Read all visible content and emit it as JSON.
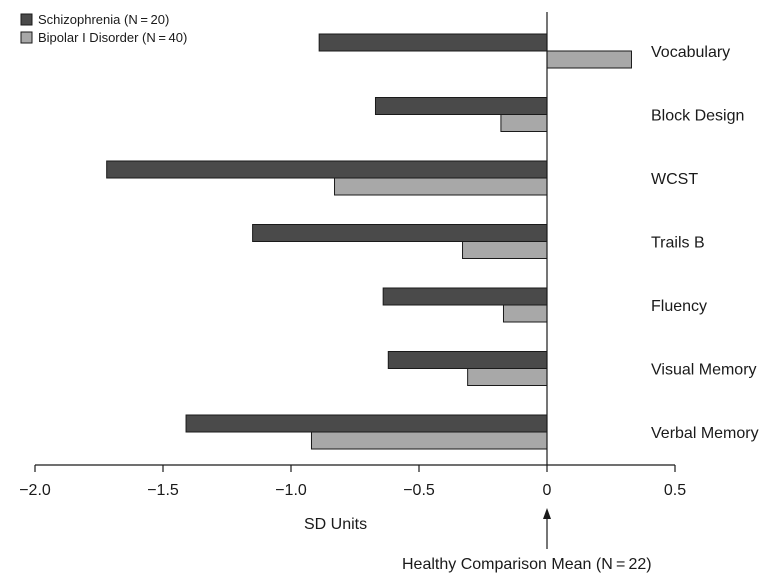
{
  "chart_data": {
    "type": "bar",
    "orientation": "horizontal",
    "categories": [
      "Vocabulary",
      "Block Design",
      "WCST",
      "Trails B",
      "Fluency",
      "Visual Memory",
      "Verbal Memory"
    ],
    "series": [
      {
        "name": "Schizophrenia (N = 20)",
        "color": "#4a4a4a",
        "values": [
          -0.89,
          -0.67,
          -1.72,
          -1.15,
          -0.64,
          -0.62,
          -1.41
        ]
      },
      {
        "name": "Bipolar I Disorder (N = 40)",
        "color": "#a8a8a8",
        "values": [
          0.33,
          -0.18,
          -0.83,
          -0.33,
          -0.17,
          -0.31,
          -0.92
        ]
      }
    ],
    "xlim": [
      -2.0,
      0.5
    ],
    "xticks": [
      -2.0,
      -1.5,
      -1.0,
      -0.5,
      0,
      0.5
    ],
    "xtick_labels": [
      "−2.0",
      "−1.5",
      "−1.0",
      "−0.5",
      "0",
      "0.5"
    ],
    "xlabel": "SD Units",
    "reference_label": "Healthy Comparison Mean (N = 22)",
    "legend_position": "top-left",
    "grid": false
  }
}
